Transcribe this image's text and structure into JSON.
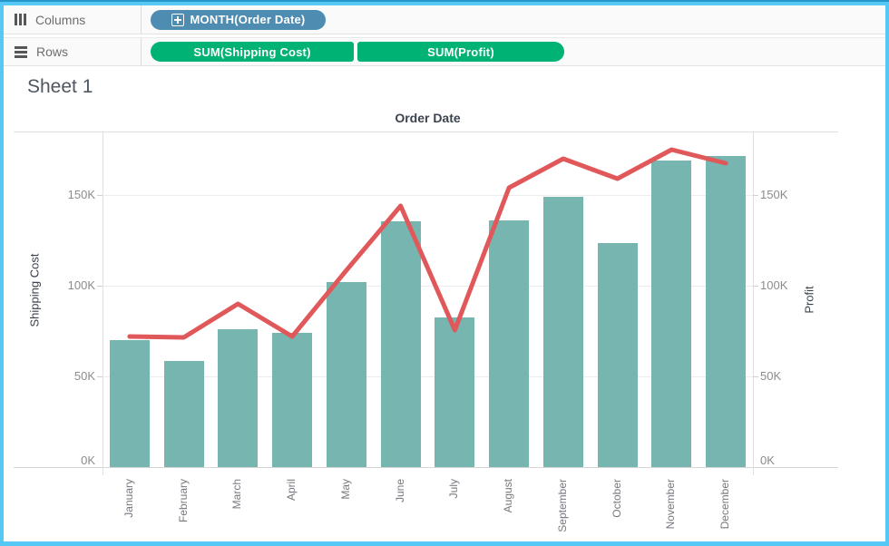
{
  "colors": {
    "frame_accent": "#55C8F5",
    "dimension_pill": "#4F8CB1",
    "measure_pill": "#00B273",
    "bar": "#76B5B0",
    "line": "#E0585A"
  },
  "shelves": {
    "columns": {
      "label": "Columns",
      "pills": [
        {
          "text": "MONTH(Order Date)",
          "color": "#4F8CB1",
          "icon": "plus-box-icon"
        }
      ]
    },
    "rows": {
      "label": "Rows",
      "pills": [
        {
          "text": "SUM(Shipping Cost)",
          "color": "#00B273"
        },
        {
          "text": "SUM(Profit)",
          "color": "#00B273"
        }
      ]
    }
  },
  "sheet": {
    "title": "Sheet 1"
  },
  "chart_data": {
    "type": "combo",
    "title": "Order Date",
    "categories": [
      "January",
      "February",
      "March",
      "April",
      "May",
      "June",
      "July",
      "August",
      "September",
      "October",
      "November",
      "December"
    ],
    "series": [
      {
        "name": "SUM(Shipping Cost)",
        "type": "bar",
        "axis": "left",
        "color": "#76B5B0",
        "unit": "K",
        "values": [
          70,
          58.5,
          76,
          74,
          102,
          135.5,
          82.5,
          136,
          149,
          123.5,
          169,
          171.5
        ]
      },
      {
        "name": "SUM(Profit)",
        "type": "line",
        "axis": "right",
        "color": "#E0585A",
        "unit": "K",
        "values": [
          72,
          71.5,
          90,
          72,
          108.5,
          144,
          75.5,
          154,
          170,
          159,
          175,
          167.5
        ]
      }
    ],
    "left_axis": {
      "label": "Shipping Cost",
      "ticks": [
        0,
        50,
        100,
        150
      ],
      "tick_labels": [
        "0K",
        "50K",
        "100K",
        "150K"
      ]
    },
    "right_axis": {
      "label": "Profit",
      "ticks": [
        0,
        50,
        100,
        150
      ],
      "tick_labels": [
        "0K",
        "50K",
        "100K",
        "150K"
      ]
    },
    "ylim": [
      0,
      185
    ],
    "grid": true,
    "legend": "none"
  }
}
